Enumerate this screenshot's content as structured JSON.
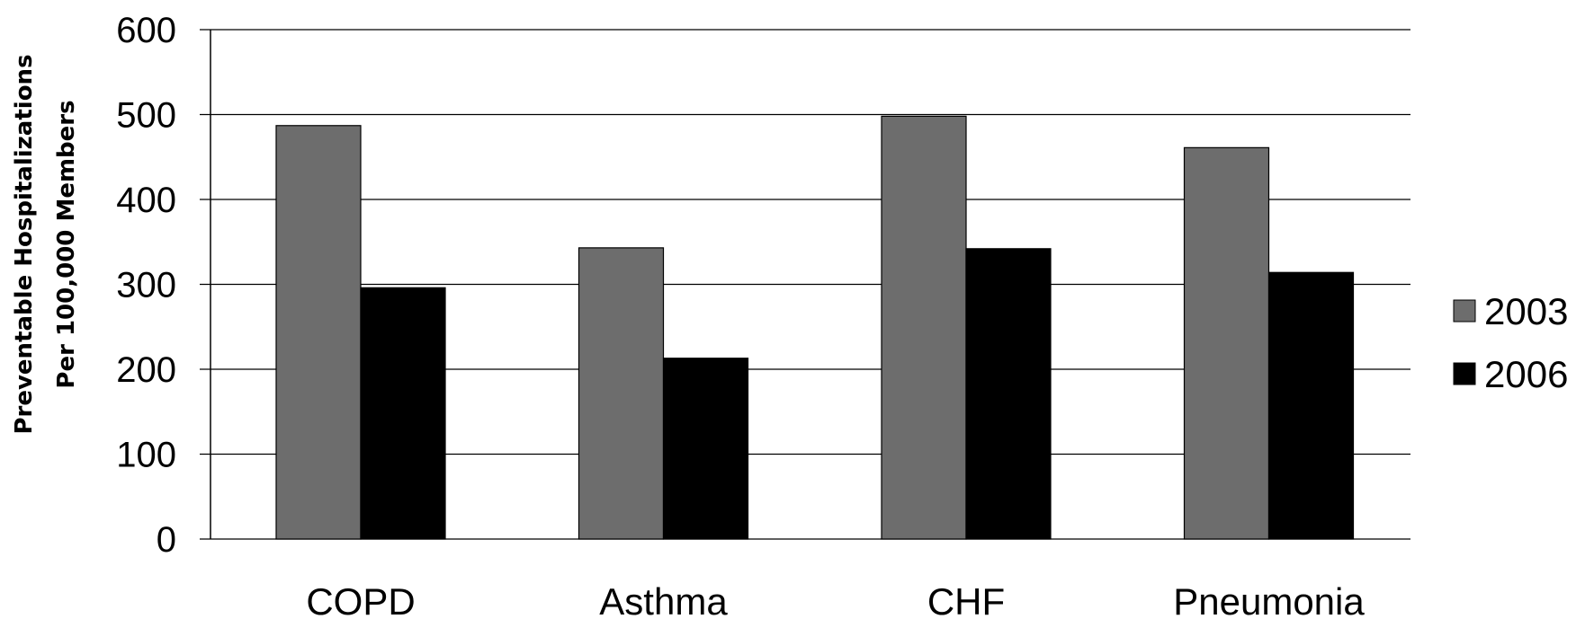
{
  "chart_data": {
    "type": "bar",
    "title": "",
    "xlabel": "",
    "ylabel_lines": [
      "Preventable Hospitalizations",
      "Per 100,000 Members"
    ],
    "categories": [
      "COPD",
      "Asthma",
      "CHF",
      "Pneumonia"
    ],
    "series": [
      {
        "name": "2003",
        "color": "#6d6d6d",
        "values": [
          487,
          343,
          498,
          461
        ]
      },
      {
        "name": "2006",
        "color": "#000000",
        "values": [
          296,
          213,
          342,
          314
        ]
      }
    ],
    "ylim": [
      0,
      600
    ],
    "yticks": [
      0,
      100,
      200,
      300,
      400,
      500,
      600
    ],
    "grid": true,
    "legend_position": "right"
  }
}
